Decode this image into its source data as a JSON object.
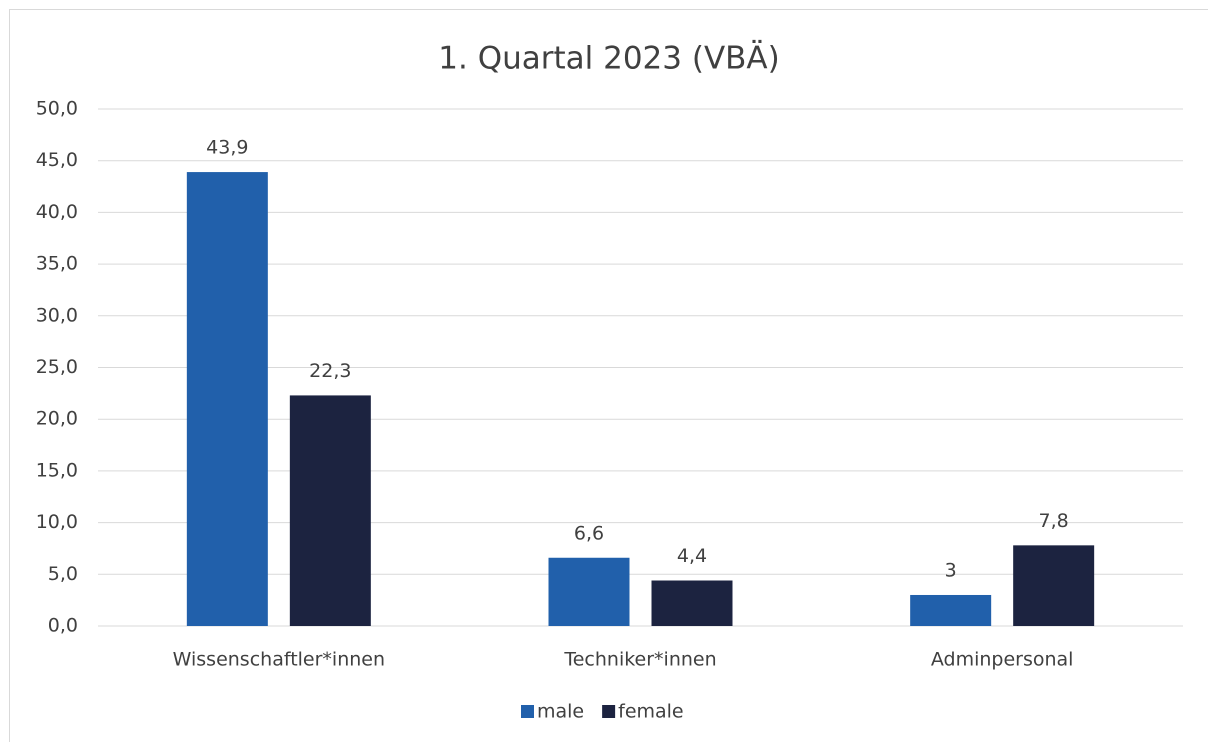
{
  "chart_data": {
    "type": "bar",
    "title": "1. Quartal 2023 (VBÄ)",
    "categories": [
      "Wissenschaftler*innen",
      "Techniker*innen",
      "Adminpersonal"
    ],
    "series": [
      {
        "name": "male",
        "color": "#2160ab",
        "values": [
          43.9,
          6.6,
          3
        ],
        "value_labels": [
          "43,9",
          "6,6",
          "3"
        ]
      },
      {
        "name": "female",
        "color": "#1c2340",
        "values": [
          22.3,
          4.4,
          7.8
        ],
        "value_labels": [
          "22,3",
          "4,4",
          "7,8"
        ]
      }
    ],
    "ylim": [
      0,
      50
    ],
    "yticks": [
      {
        "value": 0,
        "label": "0,0"
      },
      {
        "value": 5,
        "label": "5,0"
      },
      {
        "value": 10,
        "label": "10,0"
      },
      {
        "value": 15,
        "label": "15,0"
      },
      {
        "value": 20,
        "label": "20,0"
      },
      {
        "value": 25,
        "label": "25,0"
      },
      {
        "value": 30,
        "label": "30,0"
      },
      {
        "value": 35,
        "label": "35,0"
      },
      {
        "value": 40,
        "label": "40,0"
      },
      {
        "value": 45,
        "label": "45,0"
      },
      {
        "value": 50,
        "label": "50,0"
      }
    ],
    "grid": true,
    "legend": "bottom"
  }
}
